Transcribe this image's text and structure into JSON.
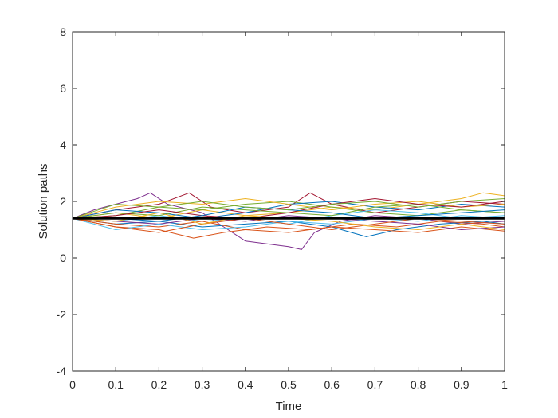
{
  "chart_data": {
    "type": "line",
    "title": "",
    "xlabel": "Time",
    "ylabel": "Solution paths",
    "xlim": [
      0,
      1
    ],
    "ylim": [
      -4,
      8
    ],
    "xticks": [
      0,
      0.1,
      0.2,
      0.3,
      0.4,
      0.5,
      0.6,
      0.7,
      0.8,
      0.9,
      1
    ],
    "xtick_labels": [
      "0",
      "0.1",
      "0.2",
      "0.3",
      "0.4",
      "0.5",
      "0.6",
      "0.7",
      "0.8",
      "0.9",
      "1"
    ],
    "yticks": [
      -4,
      -2,
      0,
      2,
      4,
      6,
      8
    ],
    "ytick_labels": [
      "-4",
      "-2",
      "0",
      "2",
      "4",
      "6",
      "8"
    ],
    "grid": false,
    "series": [
      {
        "values": [
          [
            0,
            1.4
          ],
          [
            1,
            1.4
          ]
        ],
        "color": "#000000",
        "role": "mean"
      },
      {
        "values": [
          [
            0,
            1.4
          ],
          [
            0.05,
            1.7
          ],
          [
            0.1,
            1.9
          ],
          [
            0.15,
            2.1
          ],
          [
            0.18,
            2.3
          ],
          [
            0.22,
            1.9
          ],
          [
            0.3,
            1.6
          ],
          [
            0.35,
            1.1
          ],
          [
            0.4,
            0.6
          ],
          [
            0.45,
            0.5
          ],
          [
            0.5,
            0.4
          ],
          [
            0.53,
            0.3
          ],
          [
            0.56,
            0.9
          ],
          [
            0.62,
            1.3
          ],
          [
            0.7,
            1.5
          ],
          [
            0.8,
            1.4
          ],
          [
            0.9,
            1.2
          ],
          [
            1,
            1.3
          ]
        ],
        "color": "#7e2f8e"
      },
      {
        "values": [
          [
            0,
            1.4
          ],
          [
            0.1,
            1.7
          ],
          [
            0.2,
            1.9
          ],
          [
            0.27,
            2.3
          ],
          [
            0.32,
            1.8
          ],
          [
            0.4,
            1.6
          ],
          [
            0.5,
            1.8
          ],
          [
            0.55,
            2.3
          ],
          [
            0.6,
            1.9
          ],
          [
            0.7,
            1.6
          ],
          [
            0.8,
            1.8
          ],
          [
            0.9,
            2.0
          ],
          [
            1,
            1.9
          ]
        ],
        "color": "#a2142f"
      },
      {
        "values": [
          [
            0,
            1.4
          ],
          [
            0.1,
            1.2
          ],
          [
            0.2,
            1.3
          ],
          [
            0.3,
            1.1
          ],
          [
            0.4,
            1.2
          ],
          [
            0.5,
            1.3
          ],
          [
            0.6,
            1.1
          ],
          [
            0.68,
            0.75
          ],
          [
            0.75,
            1.0
          ],
          [
            0.85,
            1.2
          ],
          [
            0.95,
            1.3
          ],
          [
            1,
            1.2
          ]
        ],
        "color": "#0072bd"
      },
      {
        "values": [
          [
            0,
            1.4
          ],
          [
            0.1,
            1.6
          ],
          [
            0.2,
            1.4
          ],
          [
            0.3,
            1.7
          ],
          [
            0.4,
            1.5
          ],
          [
            0.5,
            1.6
          ],
          [
            0.6,
            1.8
          ],
          [
            0.7,
            1.7
          ],
          [
            0.8,
            1.9
          ],
          [
            0.9,
            2.1
          ],
          [
            0.95,
            2.3
          ],
          [
            1,
            2.2
          ]
        ],
        "color": "#edb120"
      },
      {
        "values": [
          [
            0,
            1.4
          ],
          [
            0.1,
            1.1
          ],
          [
            0.2,
            1.0
          ],
          [
            0.28,
            0.7
          ],
          [
            0.35,
            0.9
          ],
          [
            0.45,
            1.1
          ],
          [
            0.55,
            1.0
          ],
          [
            0.65,
            1.2
          ],
          [
            0.75,
            1.1
          ],
          [
            0.85,
            1.3
          ],
          [
            0.95,
            1.2
          ],
          [
            1,
            1.1
          ]
        ],
        "color": "#d95319"
      },
      {
        "values": [
          [
            0,
            1.4
          ],
          [
            0.1,
            1.5
          ],
          [
            0.2,
            1.8
          ],
          [
            0.3,
            1.7
          ],
          [
            0.4,
            1.9
          ],
          [
            0.5,
            2.0
          ],
          [
            0.6,
            1.8
          ],
          [
            0.7,
            1.6
          ],
          [
            0.8,
            1.5
          ],
          [
            0.9,
            1.7
          ],
          [
            1,
            1.6
          ]
        ],
        "color": "#77ac30"
      },
      {
        "values": [
          [
            0,
            1.4
          ],
          [
            0.1,
            1.3
          ],
          [
            0.2,
            1.5
          ],
          [
            0.3,
            1.3
          ],
          [
            0.4,
            1.4
          ],
          [
            0.5,
            1.2
          ],
          [
            0.6,
            1.5
          ],
          [
            0.7,
            1.7
          ],
          [
            0.8,
            1.6
          ],
          [
            0.9,
            1.4
          ],
          [
            1,
            1.5
          ]
        ],
        "color": "#4dbeee"
      },
      {
        "values": [
          [
            0,
            1.4
          ],
          [
            0.1,
            1.7
          ],
          [
            0.2,
            1.6
          ],
          [
            0.3,
            1.4
          ],
          [
            0.4,
            1.6
          ],
          [
            0.5,
            1.9
          ],
          [
            0.6,
            2.0
          ],
          [
            0.7,
            1.8
          ],
          [
            0.8,
            1.7
          ],
          [
            0.9,
            1.9
          ],
          [
            1,
            1.8
          ]
        ],
        "color": "#0072bd"
      },
      {
        "values": [
          [
            0,
            1.4
          ],
          [
            0.1,
            1.2
          ],
          [
            0.2,
            1.1
          ],
          [
            0.3,
            1.3
          ],
          [
            0.4,
            1.0
          ],
          [
            0.5,
            0.9
          ],
          [
            0.6,
            1.1
          ],
          [
            0.7,
            1.0
          ],
          [
            0.8,
            0.9
          ],
          [
            0.9,
            1.1
          ],
          [
            1,
            0.95
          ]
        ],
        "color": "#d95319"
      },
      {
        "values": [
          [
            0,
            1.4
          ],
          [
            0.1,
            1.8
          ],
          [
            0.2,
            2.0
          ],
          [
            0.3,
            1.9
          ],
          [
            0.4,
            2.1
          ],
          [
            0.5,
            1.9
          ],
          [
            0.6,
            1.7
          ],
          [
            0.7,
            1.9
          ],
          [
            0.8,
            2.0
          ],
          [
            0.9,
            1.8
          ],
          [
            1,
            1.9
          ]
        ],
        "color": "#edb120"
      },
      {
        "values": [
          [
            0,
            1.4
          ],
          [
            0.1,
            1.3
          ],
          [
            0.2,
            1.2
          ],
          [
            0.3,
            1.4
          ],
          [
            0.4,
            1.3
          ],
          [
            0.5,
            1.5
          ],
          [
            0.6,
            1.4
          ],
          [
            0.7,
            1.3
          ],
          [
            0.8,
            1.2
          ],
          [
            0.9,
            1.0
          ],
          [
            1,
            1.1
          ]
        ],
        "color": "#7e2f8e"
      },
      {
        "values": [
          [
            0,
            1.4
          ],
          [
            0.1,
            1.6
          ],
          [
            0.2,
            1.5
          ],
          [
            0.3,
            1.8
          ],
          [
            0.4,
            1.7
          ],
          [
            0.5,
            1.6
          ],
          [
            0.6,
            1.5
          ],
          [
            0.7,
            1.8
          ],
          [
            0.8,
            1.9
          ],
          [
            0.9,
            1.7
          ],
          [
            1,
            1.6
          ]
        ],
        "color": "#77ac30"
      },
      {
        "values": [
          [
            0,
            1.4
          ],
          [
            0.1,
            1.0
          ],
          [
            0.2,
            1.2
          ],
          [
            0.3,
            1.0
          ],
          [
            0.4,
            1.1
          ],
          [
            0.5,
            1.3
          ],
          [
            0.6,
            1.2
          ],
          [
            0.7,
            1.4
          ],
          [
            0.8,
            1.3
          ],
          [
            0.9,
            1.5
          ],
          [
            1,
            1.4
          ]
        ],
        "color": "#4dbeee"
      },
      {
        "values": [
          [
            0,
            1.4
          ],
          [
            0.1,
            1.5
          ],
          [
            0.2,
            1.7
          ],
          [
            0.3,
            1.5
          ],
          [
            0.4,
            1.4
          ],
          [
            0.5,
            1.6
          ],
          [
            0.6,
            1.9
          ],
          [
            0.7,
            2.1
          ],
          [
            0.8,
            1.9
          ],
          [
            0.9,
            1.8
          ],
          [
            1,
            2.0
          ]
        ],
        "color": "#a2142f"
      },
      {
        "values": [
          [
            0,
            1.4
          ],
          [
            0.1,
            1.4
          ],
          [
            0.2,
            1.3
          ],
          [
            0.3,
            1.5
          ],
          [
            0.4,
            1.8
          ],
          [
            0.5,
            1.7
          ],
          [
            0.6,
            1.6
          ],
          [
            0.7,
            1.4
          ],
          [
            0.8,
            1.5
          ],
          [
            0.9,
            1.6
          ],
          [
            1,
            1.7
          ]
        ],
        "color": "#0072bd"
      },
      {
        "values": [
          [
            0,
            1.4
          ],
          [
            0.1,
            1.1
          ],
          [
            0.2,
            0.9
          ],
          [
            0.3,
            1.2
          ],
          [
            0.4,
            1.4
          ],
          [
            0.5,
            1.2
          ],
          [
            0.6,
            1.0
          ],
          [
            0.7,
            1.2
          ],
          [
            0.8,
            1.4
          ],
          [
            0.9,
            1.3
          ],
          [
            1,
            1.2
          ]
        ],
        "color": "#d95319"
      },
      {
        "values": [
          [
            0,
            1.4
          ],
          [
            0.1,
            1.9
          ],
          [
            0.2,
            1.8
          ],
          [
            0.3,
            2.0
          ],
          [
            0.4,
            1.8
          ],
          [
            0.5,
            1.7
          ],
          [
            0.6,
            1.9
          ],
          [
            0.7,
            2.0
          ],
          [
            0.8,
            1.8
          ],
          [
            0.9,
            2.0
          ],
          [
            1,
            2.1
          ]
        ],
        "color": "#77ac30"
      },
      {
        "values": [
          [
            0,
            1.4
          ],
          [
            0.1,
            1.3
          ],
          [
            0.2,
            1.6
          ],
          [
            0.3,
            1.2
          ],
          [
            0.4,
            1.5
          ],
          [
            0.5,
            1.4
          ],
          [
            0.6,
            1.3
          ],
          [
            0.7,
            1.1
          ],
          [
            0.8,
            1.0
          ],
          [
            0.9,
            1.2
          ],
          [
            1,
            1.0
          ]
        ],
        "color": "#edb120"
      }
    ]
  }
}
